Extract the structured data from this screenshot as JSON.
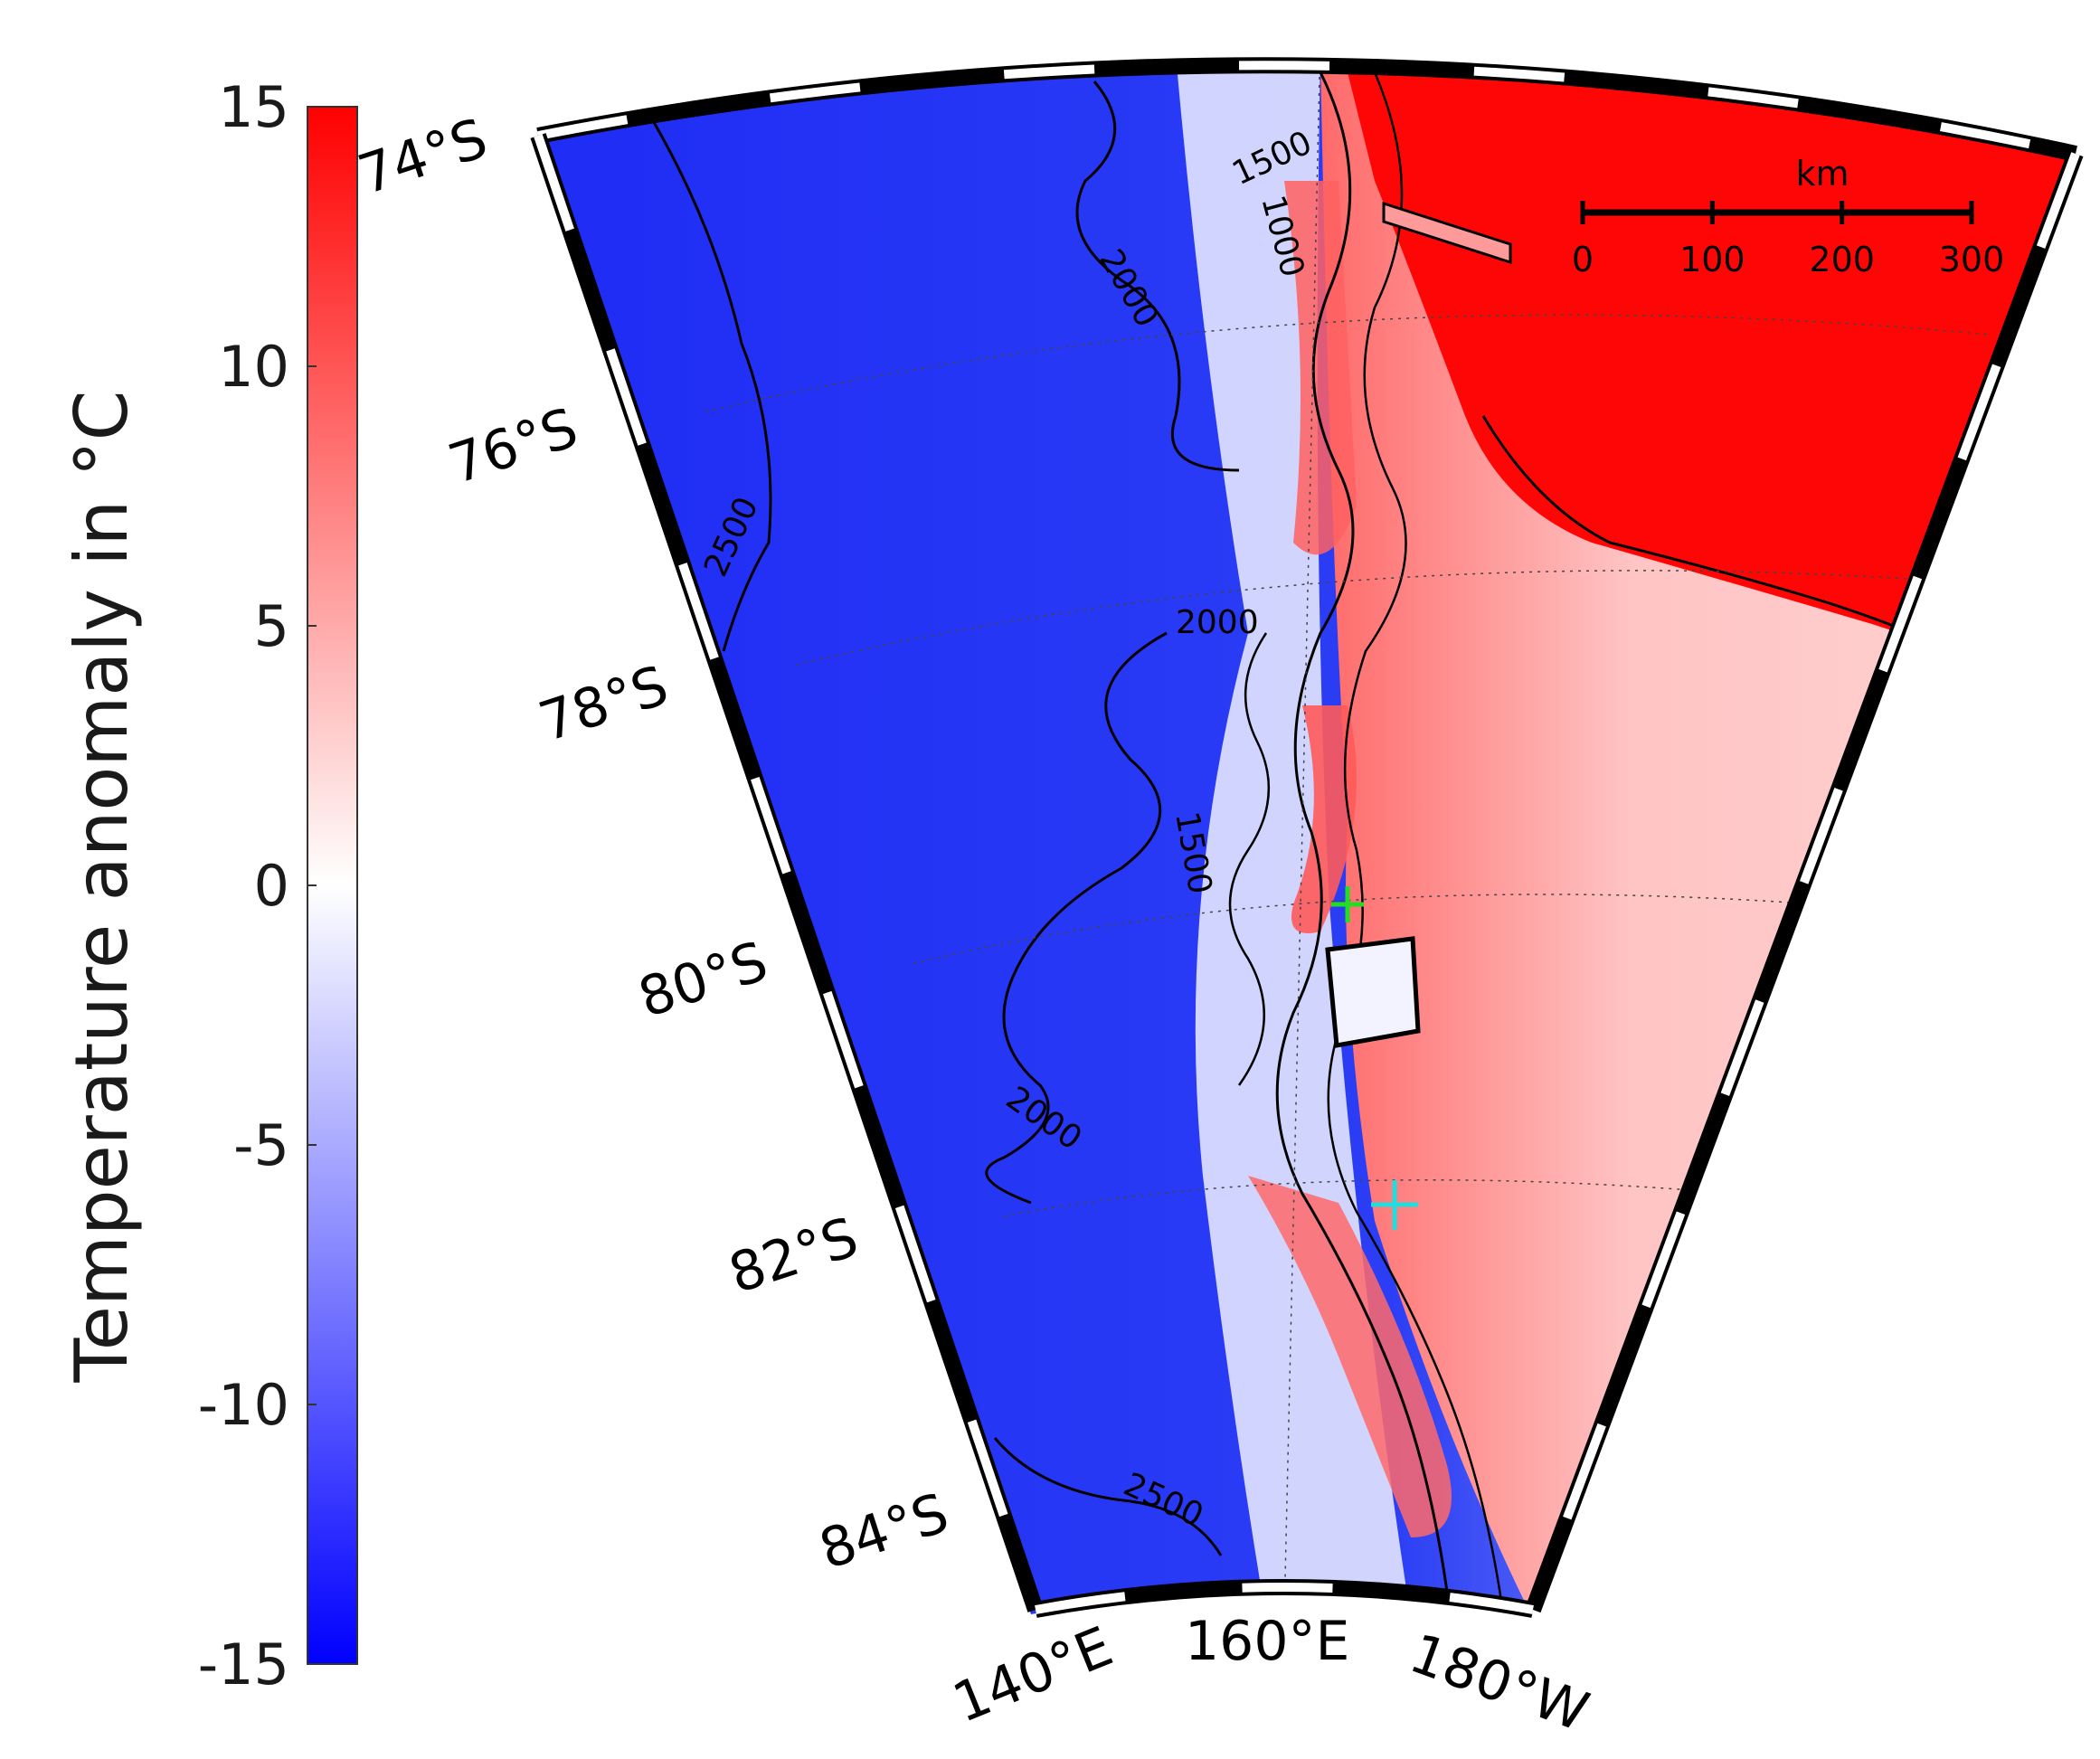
{
  "colorbar": {
    "title": "Temperature anomaly in °C",
    "min": -15,
    "max": 15,
    "tick_labels": [
      "15",
      "10",
      "5",
      "0",
      "-5",
      "-10",
      "-15"
    ],
    "tick_values": [
      15,
      10,
      5,
      0,
      -5,
      -10,
      -15
    ],
    "color_low": "#0000ff",
    "color_mid": "#ffffff",
    "color_high": "#ff0000"
  },
  "map": {
    "latitude_labels": [
      "74°S",
      "76°S",
      "78°S",
      "80°S",
      "82°S",
      "84°S"
    ],
    "longitude_labels": [
      "140°E",
      "160°E",
      "180°W"
    ],
    "contour_labels": [
      "1500",
      "1000",
      "2000",
      "2500",
      "2000",
      "1500",
      "2000",
      "2500"
    ],
    "scale_bar": {
      "unit": "km",
      "tick_labels": [
        "0",
        "100",
        "200",
        "300"
      ]
    },
    "markers": [
      {
        "name": "green-plus-marker",
        "color": "#22dd22"
      },
      {
        "name": "cyan-plus-marker",
        "color": "#22dddd"
      }
    ]
  }
}
